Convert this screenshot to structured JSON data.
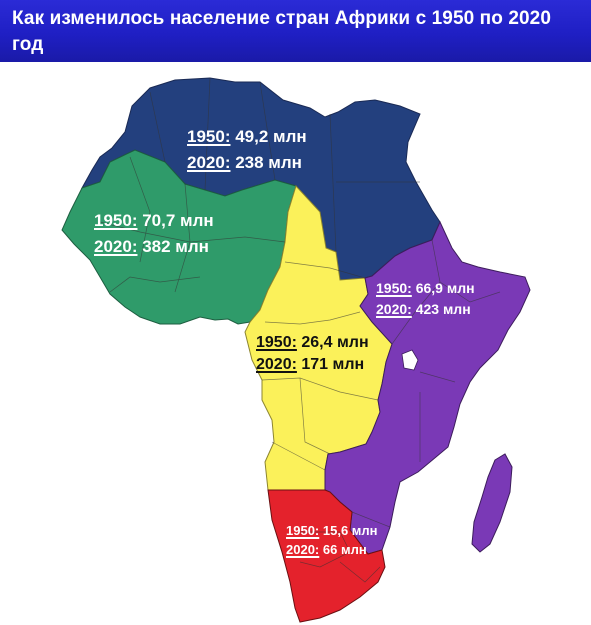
{
  "header": {
    "title": "Как изменилось население стран Африки с 1950 по 2020 год"
  },
  "colors": {
    "header_bg": "#2222cc",
    "north": "#23407e",
    "west": "#2f9b6a",
    "central": "#fbf15a",
    "east": "#7a39b6",
    "south": "#e4222c",
    "border": "#444444"
  },
  "regions": {
    "north": {
      "label_1950_year": "1950:",
      "label_1950_value": "49,2 млн",
      "label_2020_year": "2020:",
      "label_2020_value": "238 млн",
      "color": "#23407e"
    },
    "west": {
      "label_1950_year": "1950:",
      "label_1950_value": "70,7 млн",
      "label_2020_year": "2020:",
      "label_2020_value": "382 млн",
      "color": "#2f9b6a"
    },
    "east": {
      "label_1950_year": "1950:",
      "label_1950_value": "66,9 млн",
      "label_2020_year": "2020:",
      "label_2020_value": "423 млн",
      "color": "#7a39b6"
    },
    "central": {
      "label_1950_year": "1950:",
      "label_1950_value": "26,4 млн",
      "label_2020_year": "2020:",
      "label_2020_value": "171 млн",
      "color": "#fbf15a"
    },
    "south": {
      "label_1950_year": "1950:",
      "label_1950_value": "15,6 млн",
      "label_2020_year": "2020:",
      "label_2020_value": "66 млн",
      "color": "#e4222c"
    }
  }
}
